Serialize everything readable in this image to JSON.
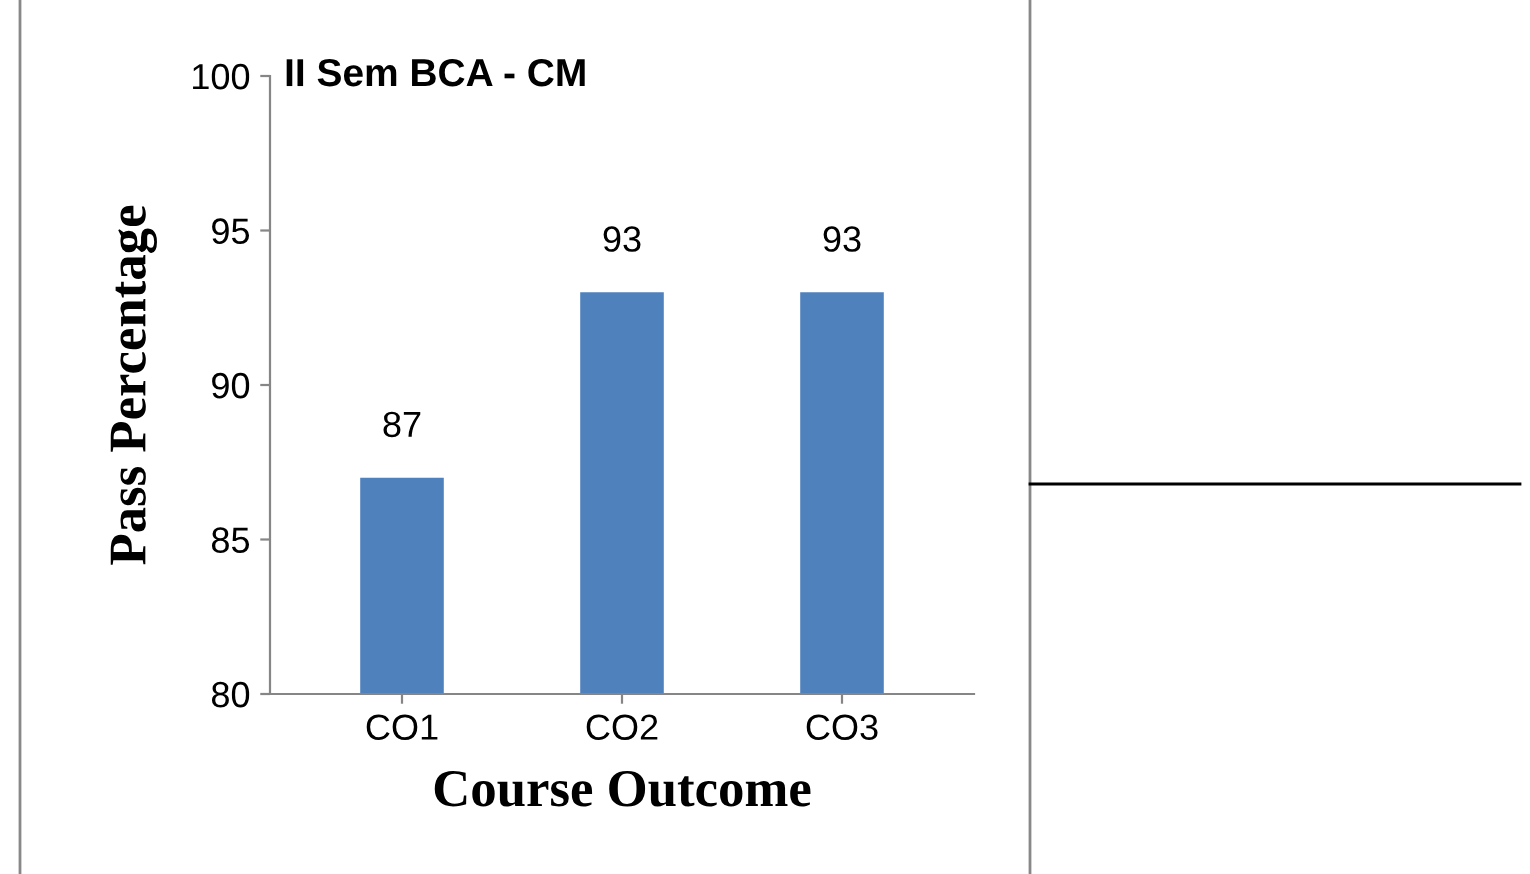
{
  "chart_data": {
    "type": "bar",
    "title": "II Sem BCA - CM",
    "xlabel": "Course Outcome",
    "ylabel": "Pass Percentage",
    "categories": [
      "CO1",
      "CO2",
      "CO3"
    ],
    "values": [
      87,
      93,
      93
    ],
    "color": "#4f81bd",
    "ylim": [
      80,
      100
    ],
    "yticks": [
      80,
      85,
      90,
      95,
      100
    ],
    "grid": false,
    "data_labels": true
  }
}
